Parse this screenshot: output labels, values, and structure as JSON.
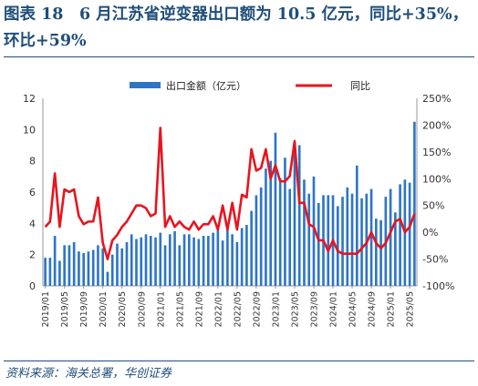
{
  "title": "图表 18　6 月江苏省逆变器出口额为 10.5 亿元，同比+35%，环比+59%",
  "source": "资料来源：海关总署，华创证券",
  "chart_data": {
    "type": "bar+line",
    "legend": [
      "出口金额（亿元）",
      "同比"
    ],
    "legend_position": "top",
    "colors": {
      "bar": "#2e75c6",
      "line": "#e8141e",
      "title": "#1f4e79"
    },
    "y_left": {
      "min": 0,
      "max": 12,
      "ticks": [
        "0",
        "2",
        "4",
        "6",
        "8",
        "10",
        "12"
      ]
    },
    "y_right": {
      "min": -100,
      "max": 250,
      "ticks": [
        "-100%",
        "-50%",
        "0%",
        "50%",
        "100%",
        "150%",
        "200%",
        "250%"
      ]
    },
    "x_tick_labels": [
      "2019/01",
      "2019/05",
      "2019/09",
      "2020/01",
      "2020/05",
      "2020/09",
      "2021/01",
      "2021/05",
      "2021/09",
      "2022/01",
      "2022/05",
      "2022/09",
      "2023/01",
      "2023/05",
      "2023/09",
      "2024/01",
      "2024/05",
      "2024/09",
      "2025/01",
      "2025/05"
    ],
    "months": [
      "2019/01",
      "2019/02",
      "2019/03",
      "2019/04",
      "2019/05",
      "2019/06",
      "2019/07",
      "2019/08",
      "2019/09",
      "2019/10",
      "2019/11",
      "2019/12",
      "2020/01",
      "2020/02",
      "2020/03",
      "2020/04",
      "2020/05",
      "2020/06",
      "2020/07",
      "2020/08",
      "2020/09",
      "2020/10",
      "2020/11",
      "2020/12",
      "2021/01",
      "2021/02",
      "2021/03",
      "2021/04",
      "2021/05",
      "2021/06",
      "2021/07",
      "2021/08",
      "2021/09",
      "2021/10",
      "2021/11",
      "2021/12",
      "2022/01",
      "2022/02",
      "2022/03",
      "2022/04",
      "2022/05",
      "2022/06",
      "2022/07",
      "2022/08",
      "2022/09",
      "2022/10",
      "2022/11",
      "2022/12",
      "2023/01",
      "2023/02",
      "2023/03",
      "2023/04",
      "2023/05",
      "2023/06",
      "2023/07",
      "2023/08",
      "2023/09",
      "2023/10",
      "2023/11",
      "2023/12",
      "2024/01",
      "2024/02",
      "2024/03",
      "2024/04",
      "2024/05",
      "2024/06",
      "2024/07",
      "2024/08",
      "2024/09",
      "2024/10",
      "2024/11",
      "2024/12",
      "2025/01",
      "2025/02",
      "2025/03",
      "2025/04",
      "2025/05",
      "2025/06"
    ],
    "export_value": [
      1.8,
      1.8,
      3.2,
      1.6,
      2.6,
      2.6,
      2.8,
      2.2,
      2.1,
      2.2,
      2.3,
      2.6,
      2.4,
      0.9,
      2.0,
      2.7,
      2.4,
      2.8,
      3.3,
      3.0,
      3.1,
      3.3,
      3.2,
      3.1,
      3.4,
      2.6,
      3.3,
      3.5,
      2.6,
      3.3,
      3.3,
      3.1,
      3.0,
      3.2,
      3.2,
      3.4,
      3.6,
      2.9,
      3.6,
      3.3,
      2.8,
      3.7,
      3.9,
      4.8,
      5.8,
      6.3,
      7.5,
      8.0,
      9.8,
      6.9,
      8.2,
      6.2,
      8.9,
      9.0,
      6.8,
      5.9,
      7.0,
      5.3,
      5.8,
      5.8,
      5.8,
      5.1,
      5.7,
      6.3,
      5.9,
      7.7,
      5.6,
      5.9,
      6.2,
      4.3,
      4.2,
      5.7,
      6.2,
      4.7,
      6.5,
      6.8,
      6.6,
      10.5
    ],
    "yoy_pct": [
      10,
      20,
      110,
      10,
      80,
      75,
      80,
      30,
      15,
      20,
      20,
      65,
      -20,
      -50,
      -15,
      -5,
      10,
      20,
      35,
      50,
      50,
      45,
      30,
      35,
      195,
      10,
      30,
      10,
      20,
      10,
      5,
      20,
      5,
      15,
      15,
      30,
      5,
      50,
      5,
      55,
      5,
      70,
      65,
      155,
      115,
      120,
      155,
      100,
      125,
      95,
      95,
      105,
      170,
      55,
      55,
      15,
      10,
      -15,
      -15,
      -35,
      -15,
      -35,
      -40,
      -40,
      -40,
      -40,
      -30,
      -20,
      0,
      -20,
      -30,
      -20,
      0,
      20,
      25,
      0,
      10,
      35
    ]
  }
}
